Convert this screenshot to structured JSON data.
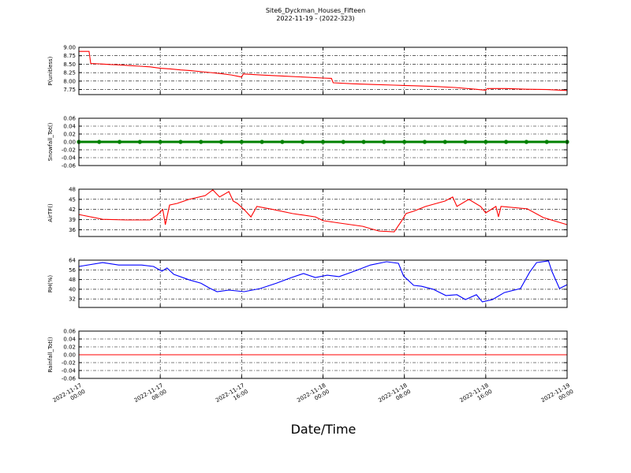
{
  "title": "Site6_Dyckman_Houses_Fifteen",
  "subtitle": "2022-11-19 - (2022-323)",
  "xlabel": "Date/Time",
  "chart_data": [
    {
      "type": "line",
      "ylabel": "P(unitless)",
      "color": "#ff0000",
      "grid": true,
      "xlim": [
        "2022-11-17 00:00",
        "2022-11-19 00:00"
      ],
      "xticks": [
        "2022-11-17 00:00",
        "2022-11-17 08:00",
        "2022-11-17 16:00",
        "2022-11-18 00:00",
        "2022-11-18 08:00",
        "2022-11-18 16:00",
        "2022-11-19 00:00"
      ],
      "ylim": [
        7.6,
        9.0
      ],
      "yticks": [
        7.75,
        {
          "value": 8,
          "label": "8.00"
        },
        8.25,
        {
          "value": 8.5,
          "label": "8.50"
        },
        8.75,
        {
          "value": 9,
          "label": "9.00"
        }
      ],
      "x": [
        "2022-11-17 00:00",
        "2022-11-17 01:00",
        "2022-11-17 01:10",
        "2022-11-17 02:00",
        "2022-11-17 03:00",
        "2022-11-17 04:00",
        "2022-11-17 05:00",
        "2022-11-17 06:00",
        "2022-11-17 07:00",
        "2022-11-17 08:00",
        "2022-11-17 09:00",
        "2022-11-17 10:00",
        "2022-11-17 11:00",
        "2022-11-17 12:00",
        "2022-11-17 13:00",
        "2022-11-17 14:00",
        "2022-11-17 15:00",
        "2022-11-17 16:00",
        "2022-11-17 16:10",
        "2022-11-17 18:00",
        "2022-11-17 20:00",
        "2022-11-17 22:00",
        "2022-11-18 00:00",
        "2022-11-18 00:50",
        "2022-11-18 01:00",
        "2022-11-18 03:00",
        "2022-11-18 05:00",
        "2022-11-18 07:00",
        "2022-11-18 09:00",
        "2022-11-18 11:00",
        "2022-11-18 13:00",
        "2022-11-18 15:00",
        "2022-11-18 16:00",
        "2022-11-18 16:10",
        "2022-11-18 18:00",
        "2022-11-18 20:00",
        "2022-11-18 22:00",
        "2022-11-19 00:00"
      ],
      "values": [
        8.88,
        8.88,
        8.52,
        8.51,
        8.49,
        8.48,
        8.46,
        8.44,
        8.42,
        8.38,
        8.36,
        8.33,
        8.31,
        8.28,
        8.25,
        8.22,
        8.18,
        8.12,
        8.21,
        8.18,
        8.15,
        8.12,
        8.09,
        8.08,
        7.95,
        7.92,
        7.9,
        7.88,
        7.86,
        7.84,
        7.81,
        7.76,
        7.73,
        7.78,
        7.78,
        7.76,
        7.75,
        7.72
      ]
    },
    {
      "type": "line",
      "marker": "o",
      "ylabel": "Snowfall_Tot()",
      "color": "#008000",
      "grid": true,
      "xlim": [
        "2022-11-17 00:00",
        "2022-11-19 00:00"
      ],
      "xticks": [
        "2022-11-17 00:00",
        "2022-11-17 08:00",
        "2022-11-17 16:00",
        "2022-11-18 00:00",
        "2022-11-18 08:00",
        "2022-11-18 16:00",
        "2022-11-19 00:00"
      ],
      "ylim": [
        -0.06,
        0.06
      ],
      "yticks": [
        -0.06,
        -0.04,
        -0.02,
        {
          "value": 0,
          "label": "0.00"
        },
        0.02,
        0.04,
        0.06
      ],
      "x": [
        "2022-11-17 00:00",
        "2022-11-17 02:00",
        "2022-11-17 04:00",
        "2022-11-17 06:00",
        "2022-11-17 08:00",
        "2022-11-17 10:00",
        "2022-11-17 12:00",
        "2022-11-17 14:00",
        "2022-11-17 16:00",
        "2022-11-17 18:00",
        "2022-11-17 20:00",
        "2022-11-17 22:00",
        "2022-11-18 00:00",
        "2022-11-18 02:00",
        "2022-11-18 04:00",
        "2022-11-18 06:00",
        "2022-11-18 08:00",
        "2022-11-18 10:00",
        "2022-11-18 12:00",
        "2022-11-18 14:00",
        "2022-11-18 16:00",
        "2022-11-18 18:00",
        "2022-11-18 20:00",
        "2022-11-18 22:00",
        "2022-11-19 00:00"
      ],
      "values": [
        0,
        0,
        0,
        0,
        0,
        0,
        0,
        0,
        0,
        0,
        0,
        0,
        0,
        0,
        0,
        0,
        0,
        0,
        0,
        0,
        0,
        0,
        0,
        0,
        0
      ]
    },
    {
      "type": "line",
      "ylabel": "AirTF()",
      "color": "#ff0000",
      "grid": true,
      "xlim": [
        "2022-11-17 00:00",
        "2022-11-19 00:00"
      ],
      "xticks": [
        "2022-11-17 00:00",
        "2022-11-17 08:00",
        "2022-11-17 16:00",
        "2022-11-18 00:00",
        "2022-11-18 08:00",
        "2022-11-18 16:00",
        "2022-11-19 00:00"
      ],
      "ylim": [
        34,
        48
      ],
      "yticks": [
        36,
        39,
        42,
        45,
        48
      ],
      "x": [
        "2022-11-17 00:00",
        "2022-11-17 02:20",
        "2022-11-17 04:40",
        "2022-11-17 07:00",
        "2022-11-17 07:45",
        "2022-11-17 08:15",
        "2022-11-17 08:30",
        "2022-11-17 08:55",
        "2022-11-17 09:40",
        "2022-11-17 10:50",
        "2022-11-17 12:25",
        "2022-11-17 13:10",
        "2022-11-17 13:50",
        "2022-11-17 14:45",
        "2022-11-17 15:10",
        "2022-11-17 15:35",
        "2022-11-17 16:20",
        "2022-11-17 16:55",
        "2022-11-17 17:30",
        "2022-11-17 19:05",
        "2022-11-17 21:00",
        "2022-11-17 23:15",
        "2022-11-18 00:00",
        "2022-11-18 01:35",
        "2022-11-18 03:55",
        "2022-11-18 05:30",
        "2022-11-18 07:00",
        "2022-11-18 07:45",
        "2022-11-18 08:10",
        "2022-11-18 08:55",
        "2022-11-18 10:05",
        "2022-11-18 12:00",
        "2022-11-18 12:45",
        "2022-11-18 13:10",
        "2022-11-18 14:20",
        "2022-11-18 15:30",
        "2022-11-18 16:00",
        "2022-11-18 17:00",
        "2022-11-18 17:15",
        "2022-11-18 17:30",
        "2022-11-18 20:05",
        "2022-11-18 21:40",
        "2022-11-19 00:00"
      ],
      "values": [
        40.5,
        39.1,
        38.9,
        38.9,
        40.5,
        42.0,
        37.5,
        43.3,
        43.8,
        45.0,
        46.1,
        47.8,
        45.7,
        47.3,
        44.5,
        43.8,
        41.7,
        39.8,
        42.9,
        42.0,
        40.8,
        39.8,
        38.7,
        38.0,
        37.0,
        35.6,
        35.4,
        38.7,
        40.8,
        41.5,
        42.9,
        44.5,
        45.7,
        42.9,
        45.0,
        42.9,
        41.0,
        42.9,
        39.8,
        42.9,
        42.2,
        39.6,
        37.5
      ]
    },
    {
      "type": "line",
      "ylabel": "RH(%)",
      "color": "#0000ff",
      "grid": true,
      "xlim": [
        "2022-11-17 00:00",
        "2022-11-19 00:00"
      ],
      "xticks": [
        "2022-11-17 00:00",
        "2022-11-17 08:00",
        "2022-11-17 16:00",
        "2022-11-18 00:00",
        "2022-11-18 08:00",
        "2022-11-18 16:00",
        "2022-11-19 00:00"
      ],
      "ylim": [
        25,
        64
      ],
      "yticks": [
        32,
        40,
        48,
        56,
        64
      ],
      "x": [
        "2022-11-17 00:00",
        "2022-11-17 02:20",
        "2022-11-17 03:55",
        "2022-11-17 06:10",
        "2022-11-17 07:20",
        "2022-11-17 08:10",
        "2022-11-17 08:40",
        "2022-11-17 09:20",
        "2022-11-17 10:50",
        "2022-11-17 12:00",
        "2022-11-17 12:50",
        "2022-11-17 13:35",
        "2022-11-17 14:45",
        "2022-11-17 16:15",
        "2022-11-17 17:50",
        "2022-11-17 19:25",
        "2022-11-17 20:55",
        "2022-11-17 22:05",
        "2022-11-17 23:15",
        "2022-11-18 00:25",
        "2022-11-18 01:35",
        "2022-11-18 03:05",
        "2022-11-18 04:40",
        "2022-11-18 06:15",
        "2022-11-18 07:25",
        "2022-11-18 07:55",
        "2022-11-18 08:55",
        "2022-11-18 09:40",
        "2022-11-18 10:50",
        "2022-11-18 12:05",
        "2022-11-18 13:10",
        "2022-11-18 14:00",
        "2022-11-18 15:05",
        "2022-11-18 15:40",
        "2022-11-18 16:40",
        "2022-11-18 17:50",
        "2022-11-18 19:25",
        "2022-11-18 20:20",
        "2022-11-18 21:00",
        "2022-11-18 22:10",
        "2022-11-18 22:30",
        "2022-11-18 23:15",
        "2022-11-19 00:00"
      ],
      "values": [
        58.8,
        62.0,
        60.0,
        60.0,
        58.8,
        54.9,
        57.5,
        52.3,
        47.8,
        45.0,
        41.0,
        38.0,
        39.3,
        38.0,
        40.6,
        45.0,
        49.7,
        53.0,
        49.7,
        51.6,
        50.4,
        54.9,
        60.0,
        62.7,
        61.4,
        51.0,
        43.2,
        42.5,
        40.0,
        34.8,
        35.5,
        31.5,
        35.5,
        29.6,
        31.5,
        37.3,
        40.6,
        54.3,
        62.0,
        63.4,
        54.9,
        40.6,
        43.8
      ]
    },
    {
      "type": "line",
      "ylabel": "Rainfall_Tot()",
      "color": "#ff0000",
      "grid": true,
      "xlim": [
        "2022-11-17 00:00",
        "2022-11-19 00:00"
      ],
      "xticks": [
        "2022-11-17 00:00",
        "2022-11-17 08:00",
        "2022-11-17 16:00",
        "2022-11-18 00:00",
        "2022-11-18 08:00",
        "2022-11-18 16:00",
        "2022-11-19 00:00"
      ],
      "ylim": [
        -0.06,
        0.06
      ],
      "yticks": [
        -0.06,
        -0.04,
        -0.02,
        {
          "value": 0,
          "label": "0.00"
        },
        0.02,
        0.04,
        0.06
      ],
      "x": [
        "2022-11-17 00:00",
        "2022-11-17 04:00",
        "2022-11-17 08:00",
        "2022-11-17 12:00",
        "2022-11-17 16:00",
        "2022-11-17 20:00",
        "2022-11-18 00:00",
        "2022-11-18 04:00",
        "2022-11-18 08:00",
        "2022-11-18 12:00",
        "2022-11-18 16:00",
        "2022-11-18 20:00",
        "2022-11-19 00:00"
      ],
      "values": [
        0,
        0,
        0,
        0,
        0,
        0,
        0,
        0,
        0,
        0,
        0,
        0,
        0
      ]
    }
  ]
}
